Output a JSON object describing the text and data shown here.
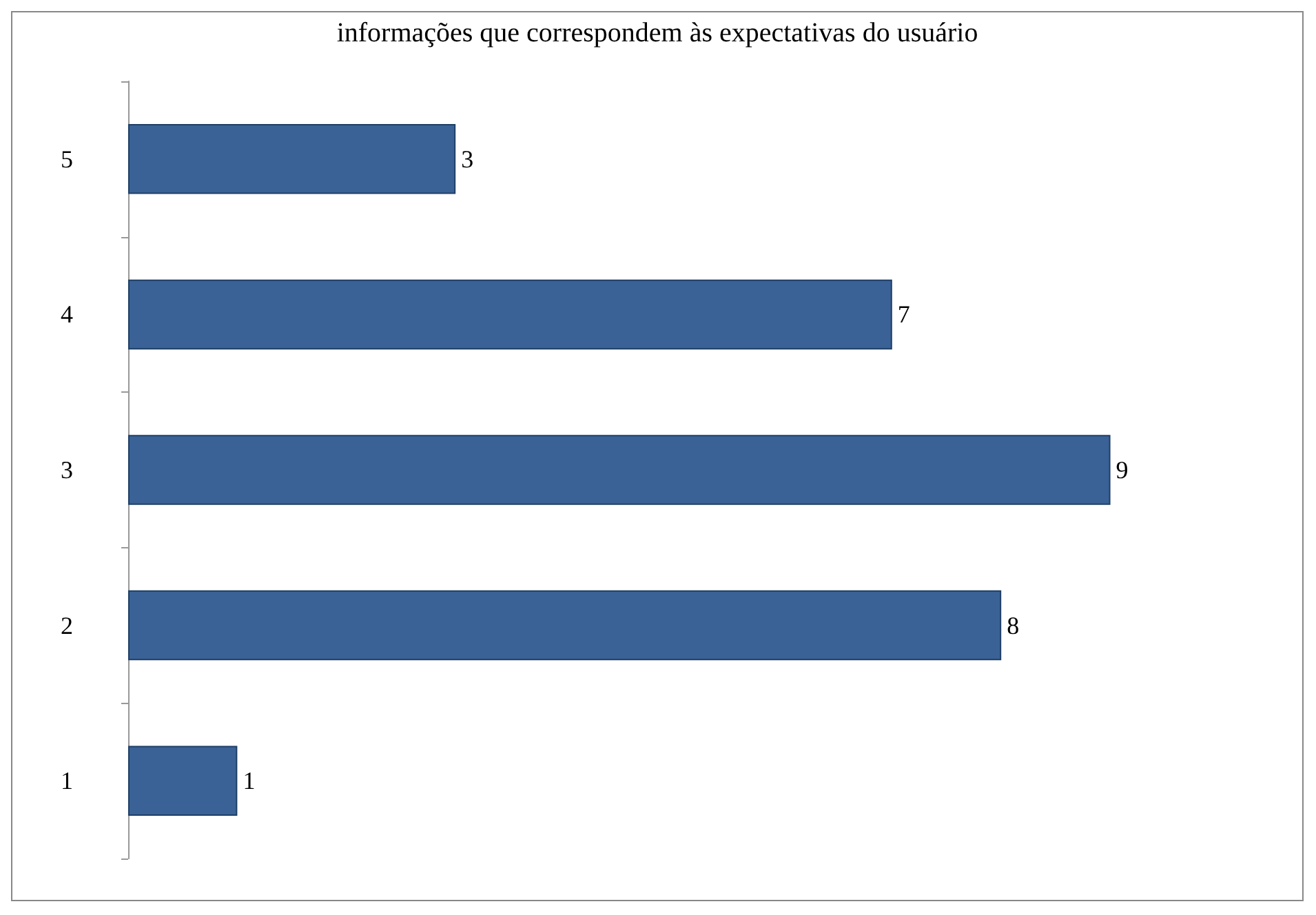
{
  "chart_data": {
    "type": "bar",
    "orientation": "horizontal",
    "title": "informações que correspondem às expectativas do usuário",
    "categories": [
      "5",
      "4",
      "3",
      "2",
      "1"
    ],
    "values": [
      3,
      7,
      9,
      8,
      1
    ],
    "color": "#3a6296",
    "data_labels": true
  }
}
